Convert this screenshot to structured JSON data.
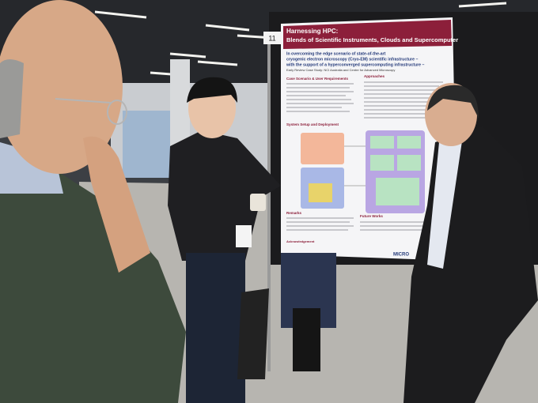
{
  "poster": {
    "number": "11",
    "title": [
      "Harnessing HPC:",
      "Blends of Scientific Instruments, Clouds and Supercomputer"
    ],
    "subtitle": [
      "In overcoming the edge scenario of state-of-the-art",
      "cryogenic electron microscopy (Cryo-EM) scientific infrastructure –",
      "with the support of a hyperconverged supercomputing infrastructure –",
      "Early Review Case Study: NCI Australia and Centre for Advanced Microscopy"
    ],
    "sections": [
      "Case Scenario & User Requirements",
      "Approaches",
      "System Setup and Deployment",
      "Remarks",
      "Future Works",
      "Acknowledgement"
    ],
    "logo": "MICRO"
  }
}
